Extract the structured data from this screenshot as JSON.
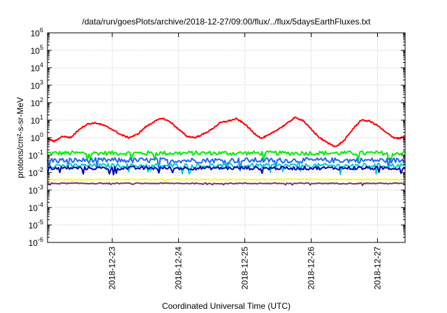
{
  "chart_data": {
    "type": "line",
    "title": "/data/run/goesPlots/archive/2018-12-27/09:00/flux/../flux/5daysEarthFluxes.txt",
    "xlabel": "Coordinated Universal Time (UTC)",
    "ylabel": "protons/cm²-s-sr-MeV",
    "y_scale": "log",
    "ylim": [
      1e-06,
      1000000.0
    ],
    "xlim_days": [
      "2018-12-22T00:34",
      "2018-12-27T10:00"
    ],
    "y_ticks": [
      {
        "base": "10",
        "exp": "-6"
      },
      {
        "base": "10",
        "exp": "-5"
      },
      {
        "base": "10",
        "exp": "-4"
      },
      {
        "base": "10",
        "exp": "-3"
      },
      {
        "base": "10",
        "exp": "-2"
      },
      {
        "base": "10",
        "exp": "-1"
      },
      {
        "base": "10",
        "exp": "0"
      },
      {
        "base": "10",
        "exp": "1"
      },
      {
        "base": "10",
        "exp": "2"
      },
      {
        "base": "10",
        "exp": "3"
      },
      {
        "base": "10",
        "exp": "4"
      },
      {
        "base": "10",
        "exp": "5"
      },
      {
        "base": "10",
        "exp": "6"
      }
    ],
    "x_ticks": [
      "2018-12-23",
      "2018-12-24",
      "2018-12-25",
      "2018-12-26",
      "2018-12-27"
    ],
    "grid": true,
    "series": [
      {
        "color": "#ff0000",
        "noise": 0.08,
        "points": [
          [
            "2018-12-22T00:34",
            0.9
          ],
          [
            "2018-12-22T03:00",
            0.6
          ],
          [
            "2018-12-22T06:00",
            1.2
          ],
          [
            "2018-12-22T09:00",
            1.0
          ],
          [
            "2018-12-22T12:00",
            3.0
          ],
          [
            "2018-12-22T15:00",
            6.0
          ],
          [
            "2018-12-22T18:00",
            7.0
          ],
          [
            "2018-12-22T21:00",
            5.0
          ],
          [
            "2018-12-23T00:00",
            3.0
          ],
          [
            "2018-12-23T03:00",
            1.5
          ],
          [
            "2018-12-23T06:00",
            1.0
          ],
          [
            "2018-12-23T09:00",
            1.5
          ],
          [
            "2018-12-23T12:00",
            4.0
          ],
          [
            "2018-12-23T15:00",
            8.0
          ],
          [
            "2018-12-23T18:00",
            13.0
          ],
          [
            "2018-12-23T21:00",
            8.0
          ],
          [
            "2018-12-24T00:00",
            3.0
          ],
          [
            "2018-12-24T03:00",
            1.2
          ],
          [
            "2018-12-24T06:00",
            1.0
          ],
          [
            "2018-12-24T09:00",
            1.6
          ],
          [
            "2018-12-24T12:00",
            3.0
          ],
          [
            "2018-12-24T15:00",
            7.0
          ],
          [
            "2018-12-24T18:00",
            9.0
          ],
          [
            "2018-12-24T21:00",
            12.0
          ],
          [
            "2018-12-25T00:00",
            6.0
          ],
          [
            "2018-12-25T03:00",
            2.0
          ],
          [
            "2018-12-25T06:00",
            0.9
          ],
          [
            "2018-12-25T09:00",
            1.5
          ],
          [
            "2018-12-25T12:00",
            3.0
          ],
          [
            "2018-12-25T15:00",
            6.0
          ],
          [
            "2018-12-25T18:00",
            14.0
          ],
          [
            "2018-12-25T21:00",
            10.0
          ],
          [
            "2018-12-26T00:00",
            3.0
          ],
          [
            "2018-12-26T03:00",
            1.0
          ],
          [
            "2018-12-26T06:00",
            0.5
          ],
          [
            "2018-12-26T09:00",
            0.3
          ],
          [
            "2018-12-26T12:00",
            0.7
          ],
          [
            "2018-12-26T15:00",
            3.0
          ],
          [
            "2018-12-26T18:00",
            10.0
          ],
          [
            "2018-12-26T21:00",
            9.0
          ],
          [
            "2018-12-27T00:00",
            5.0
          ],
          [
            "2018-12-27T03:00",
            2.0
          ],
          [
            "2018-12-27T06:00",
            1.0
          ],
          [
            "2018-12-27T08:00",
            0.9
          ],
          [
            "2018-12-27T10:00",
            1.2
          ]
        ]
      },
      {
        "color": "#00ee00",
        "level": 0.13,
        "noise": 0.25
      },
      {
        "color": "#2266ff",
        "level": 0.05,
        "noise": 0.3
      },
      {
        "color": "#00cccc",
        "level": 0.025,
        "noise": 0.25
      },
      {
        "color": "#0000aa",
        "level": 0.018,
        "noise": 0.2
      },
      {
        "color": "#ffff00",
        "level": 0.004,
        "noise": 0.05
      },
      {
        "color": "#773377",
        "level": 0.0024,
        "noise": 0.06
      }
    ]
  }
}
